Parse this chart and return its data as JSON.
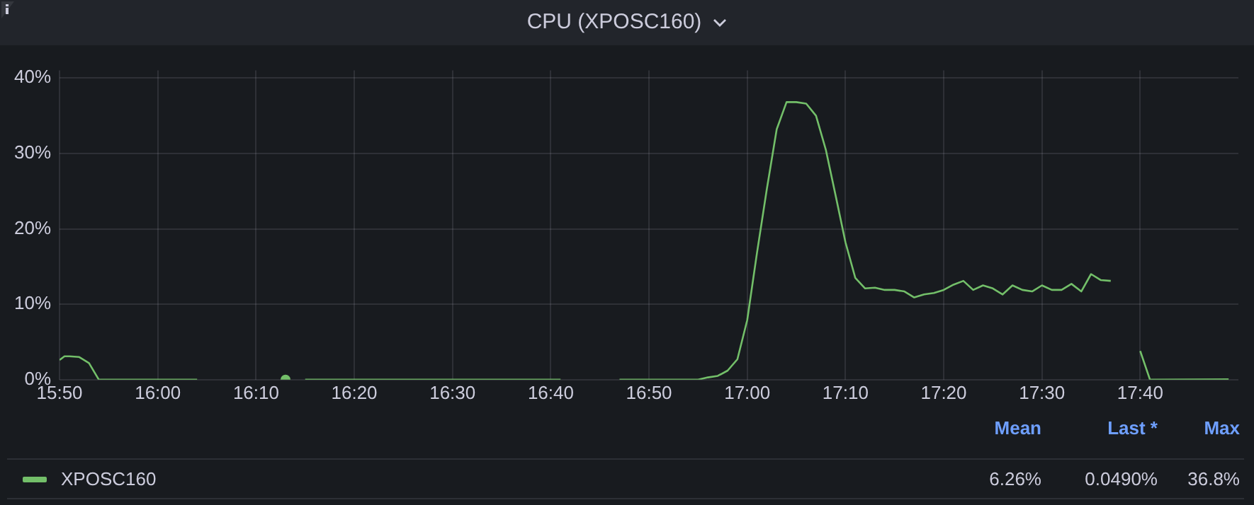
{
  "chart_data": {
    "type": "line",
    "title": "CPU (XPOSC160)",
    "legend": "bottom",
    "grid": true,
    "xlim": [
      15.8333,
      17.8333
    ],
    "xticks": [
      {
        "value": 15.8333,
        "label": "15:50"
      },
      {
        "value": 16,
        "label": "16:00"
      },
      {
        "value": 16.1667,
        "label": "16:10"
      },
      {
        "value": 16.3333,
        "label": "16:20"
      },
      {
        "value": 16.5,
        "label": "16:30"
      },
      {
        "value": 16.6667,
        "label": "16:40"
      },
      {
        "value": 16.8333,
        "label": "16:50"
      },
      {
        "value": 17,
        "label": "17:00"
      },
      {
        "value": 17.1667,
        "label": "17:10"
      },
      {
        "value": 17.3333,
        "label": "17:20"
      },
      {
        "value": 17.5,
        "label": "17:30"
      },
      {
        "value": 17.6667,
        "label": "17:40"
      }
    ],
    "ylim": [
      0,
      41
    ],
    "yticks": [
      {
        "value": 0,
        "label": "0%"
      },
      {
        "value": 10,
        "label": "10%"
      },
      {
        "value": 20,
        "label": "20%"
      },
      {
        "value": 30,
        "label": "30%"
      },
      {
        "value": 40,
        "label": "40%"
      }
    ],
    "annotations": [
      "Mean",
      "Last *",
      "Max",
      "6.26%",
      "0.0490%",
      "36.8%"
    ],
    "series": [
      {
        "name": "XPOSC160",
        "color": "#73bf69",
        "x": [
          15.8333,
          15.8417,
          15.85,
          15.8667,
          15.8833,
          15.9,
          16.0667,
          16.1,
          16.2167,
          16.2333,
          16.25,
          16.6833,
          16.75,
          16.7833,
          16.9167,
          16.9333,
          16.95,
          16.9667,
          16.9833,
          17,
          17.0167,
          17.0333,
          17.05,
          17.0667,
          17.0833,
          17.1,
          17.1167,
          17.1333,
          17.15,
          17.1667,
          17.1833,
          17.2,
          17.2167,
          17.2333,
          17.25,
          17.2667,
          17.2833,
          17.3,
          17.3167,
          17.3333,
          17.35,
          17.3667,
          17.3833,
          17.4,
          17.4167,
          17.4333,
          17.45,
          17.4667,
          17.4833,
          17.5,
          17.5167,
          17.5333,
          17.55,
          17.5667,
          17.5833,
          17.6,
          17.6167,
          17.65,
          17.6667,
          17.6833,
          17.8167
        ],
        "values": [
          2.6,
          3.1,
          3.1,
          3.0,
          2.2,
          0,
          0,
          null,
          0,
          null,
          0,
          0,
          null,
          0,
          0,
          0.3,
          0.5,
          1.2,
          2.7,
          7.9,
          16.9,
          25.3,
          33.2,
          36.8,
          36.8,
          36.6,
          35.0,
          30.5,
          24.4,
          18.2,
          13.5,
          12.1,
          12.2,
          11.9,
          11.9,
          11.7,
          10.9,
          11.3,
          11.5,
          11.9,
          12.6,
          13.1,
          11.9,
          12.5,
          12.1,
          11.3,
          12.5,
          11.9,
          11.7,
          12.5,
          11.9,
          11.9,
          12.7,
          11.7,
          14.0,
          13.2,
          13.1,
          null,
          3.8,
          0,
          0.049
        ]
      }
    ]
  }
}
